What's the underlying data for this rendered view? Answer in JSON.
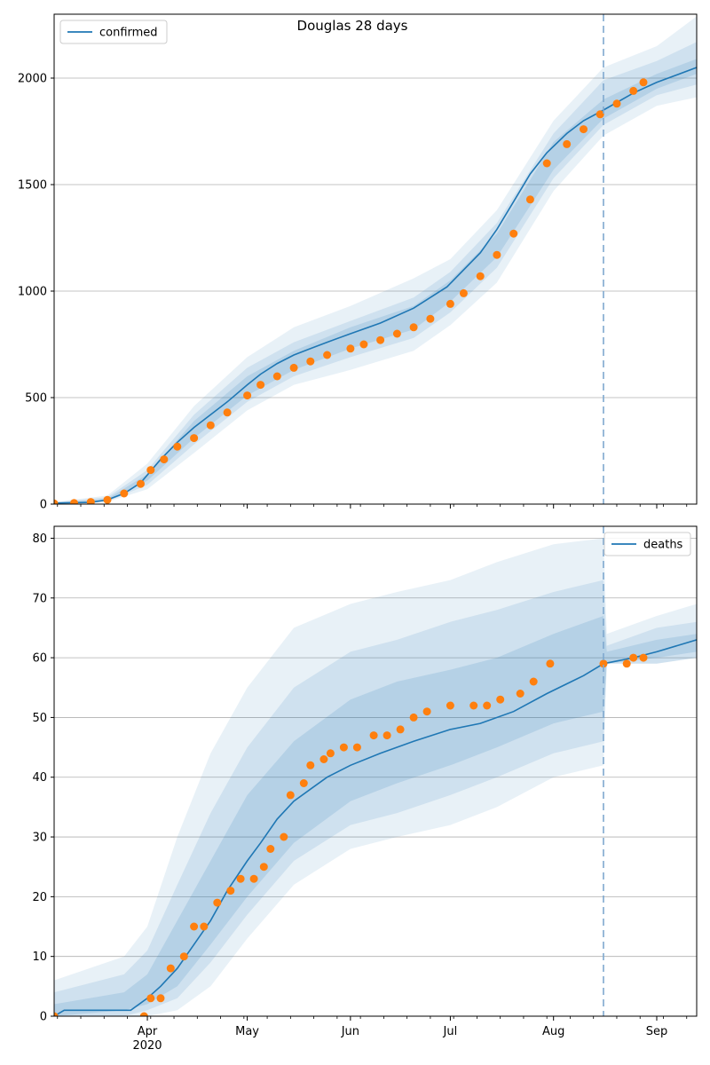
{
  "title": "Douglas 28 days",
  "colors": {
    "model": "#1f77b4",
    "observed": "#ff7f0e",
    "band": "#1f77b4",
    "grid": "#b0b0b0",
    "forecast_line": "#7fa9cf"
  },
  "x_axis": {
    "ticks": [
      {
        "date": "2020-04-01",
        "label": "Apr"
      },
      {
        "date": "2020-05-01",
        "label": "May"
      },
      {
        "date": "2020-06-01",
        "label": "Jun"
      },
      {
        "date": "2020-07-01",
        "label": "Jul"
      },
      {
        "date": "2020-08-01",
        "label": "Aug"
      },
      {
        "date": "2020-09-01",
        "label": "Sep"
      }
    ],
    "year_label": "2020",
    "range": [
      "2020-03-04",
      "2020-09-13"
    ],
    "forecast_start": "2020-08-16"
  },
  "chart_data": [
    {
      "type": "line",
      "legend": "confirmed",
      "legend_position": "upper-left",
      "ylim": [
        0,
        2300
      ],
      "yticks": [
        0,
        500,
        1000,
        1500,
        2000
      ],
      "grid": "horizontal",
      "model": {
        "x": [
          "2020-03-04",
          "2020-03-15",
          "2020-03-20",
          "2020-03-25",
          "2020-03-30",
          "2020-04-05",
          "2020-04-10",
          "2020-04-15",
          "2020-04-20",
          "2020-04-25",
          "2020-05-01",
          "2020-05-05",
          "2020-05-10",
          "2020-05-15",
          "2020-05-20",
          "2020-05-25",
          "2020-06-01",
          "2020-06-10",
          "2020-06-20",
          "2020-06-30",
          "2020-07-10",
          "2020-07-15",
          "2020-07-20",
          "2020-07-25",
          "2020-07-30",
          "2020-08-05",
          "2020-08-10",
          "2020-08-16",
          "2020-08-25",
          "2020-09-01",
          "2020-09-13"
        ],
        "y": [
          5,
          8,
          20,
          50,
          100,
          210,
          290,
          360,
          420,
          480,
          560,
          610,
          660,
          700,
          730,
          760,
          800,
          850,
          920,
          1020,
          1180,
          1290,
          1420,
          1550,
          1650,
          1740,
          1800,
          1850,
          1930,
          1980,
          2050
        ]
      },
      "bands": [
        {
          "level": "outer",
          "x": [
            "2020-03-04",
            "2020-03-20",
            "2020-04-01",
            "2020-04-15",
            "2020-05-01",
            "2020-05-15",
            "2020-06-01",
            "2020-06-20",
            "2020-07-01",
            "2020-07-15",
            "2020-08-01",
            "2020-08-16",
            "2020-09-01",
            "2020-09-13"
          ],
          "lower": [
            0,
            10,
            70,
            240,
            440,
            560,
            630,
            720,
            840,
            1040,
            1470,
            1730,
            1870,
            1910
          ],
          "upper": [
            10,
            40,
            190,
            460,
            690,
            830,
            930,
            1060,
            1150,
            1380,
            1800,
            2050,
            2150,
            2290
          ]
        },
        {
          "level": "middle",
          "x": [
            "2020-03-04",
            "2020-03-20",
            "2020-04-01",
            "2020-04-15",
            "2020-05-01",
            "2020-05-15",
            "2020-06-01",
            "2020-06-20",
            "2020-07-01",
            "2020-07-15",
            "2020-08-01",
            "2020-08-16",
            "2020-09-01",
            "2020-09-13"
          ],
          "lower": [
            0,
            12,
            90,
            280,
            480,
            600,
            690,
            780,
            900,
            1110,
            1530,
            1780,
            1920,
            1970
          ],
          "upper": [
            8,
            32,
            160,
            420,
            640,
            760,
            860,
            970,
            1090,
            1320,
            1740,
            1990,
            2080,
            2170
          ]
        },
        {
          "level": "inner",
          "x": [
            "2020-03-04",
            "2020-03-20",
            "2020-04-01",
            "2020-04-15",
            "2020-05-01",
            "2020-05-15",
            "2020-06-01",
            "2020-06-20",
            "2020-07-01",
            "2020-07-15",
            "2020-08-01",
            "2020-08-16",
            "2020-09-01",
            "2020-09-13"
          ],
          "lower": [
            2,
            15,
            110,
            310,
            510,
            630,
            730,
            820,
            950,
            1160,
            1570,
            1810,
            1950,
            2020
          ],
          "upper": [
            6,
            25,
            140,
            390,
            600,
            720,
            830,
            930,
            1050,
            1270,
            1700,
            1900,
            2020,
            2090
          ]
        }
      ],
      "observed": {
        "x": [
          "2020-03-04",
          "2020-03-10",
          "2020-03-15",
          "2020-03-20",
          "2020-03-25",
          "2020-03-30",
          "2020-04-02",
          "2020-04-06",
          "2020-04-10",
          "2020-04-15",
          "2020-04-20",
          "2020-04-25",
          "2020-05-01",
          "2020-05-05",
          "2020-05-10",
          "2020-05-15",
          "2020-05-20",
          "2020-05-25",
          "2020-06-01",
          "2020-06-05",
          "2020-06-10",
          "2020-06-15",
          "2020-06-20",
          "2020-06-25",
          "2020-07-01",
          "2020-07-05",
          "2020-07-10",
          "2020-07-15",
          "2020-07-20",
          "2020-07-25",
          "2020-07-30",
          "2020-08-05",
          "2020-08-10",
          "2020-08-15",
          "2020-08-20",
          "2020-08-25",
          "2020-08-28"
        ],
        "y": [
          3,
          5,
          10,
          20,
          50,
          95,
          160,
          210,
          270,
          310,
          370,
          430,
          510,
          560,
          600,
          640,
          670,
          700,
          730,
          750,
          770,
          800,
          830,
          870,
          940,
          990,
          1070,
          1170,
          1270,
          1430,
          1600,
          1690,
          1760,
          1830,
          1880,
          1940,
          1980
        ]
      }
    },
    {
      "type": "line",
      "legend": "deaths",
      "legend_position": "upper-right",
      "ylim": [
        0,
        82
      ],
      "yticks": [
        0,
        10,
        20,
        30,
        40,
        50,
        60,
        70,
        80
      ],
      "grid": "horizontal",
      "model": {
        "x": [
          "2020-03-04",
          "2020-03-07",
          "2020-03-27",
          "2020-04-01",
          "2020-04-05",
          "2020-04-10",
          "2020-04-15",
          "2020-04-20",
          "2020-04-25",
          "2020-05-01",
          "2020-05-05",
          "2020-05-10",
          "2020-05-15",
          "2020-05-20",
          "2020-05-25",
          "2020-06-01",
          "2020-06-10",
          "2020-06-20",
          "2020-07-01",
          "2020-07-10",
          "2020-07-20",
          "2020-07-30",
          "2020-08-10",
          "2020-08-16",
          "2020-08-25",
          "2020-09-01",
          "2020-09-13"
        ],
        "y": [
          0,
          1,
          1,
          3,
          5,
          8,
          12,
          16,
          21,
          26,
          29,
          33,
          36,
          38,
          40,
          42,
          44,
          46,
          48,
          49,
          51,
          54,
          57,
          59,
          60,
          61,
          63
        ]
      },
      "bands": [
        {
          "level": "outer",
          "x": [
            "2020-03-04",
            "2020-03-25",
            "2020-04-01",
            "2020-04-10",
            "2020-04-20",
            "2020-05-01",
            "2020-05-15",
            "2020-06-01",
            "2020-06-15",
            "2020-07-01",
            "2020-07-15",
            "2020-08-01",
            "2020-08-16",
            "2020-08-17",
            "2020-09-01",
            "2020-09-13"
          ],
          "lower": [
            0,
            0,
            0,
            1,
            5,
            13,
            22,
            28,
            30,
            32,
            35,
            40,
            42,
            59,
            59,
            60
          ],
          "upper": [
            6,
            10,
            15,
            30,
            44,
            55,
            65,
            69,
            71,
            73,
            76,
            79,
            80,
            64,
            67,
            69
          ]
        },
        {
          "level": "middle",
          "x": [
            "2020-03-04",
            "2020-03-25",
            "2020-04-01",
            "2020-04-10",
            "2020-04-20",
            "2020-05-01",
            "2020-05-15",
            "2020-06-01",
            "2020-06-15",
            "2020-07-01",
            "2020-07-15",
            "2020-08-01",
            "2020-08-16",
            "2020-08-17",
            "2020-09-01",
            "2020-09-13"
          ],
          "lower": [
            0,
            0,
            1,
            3,
            9,
            17,
            26,
            32,
            34,
            37,
            40,
            44,
            46,
            59,
            59,
            60
          ],
          "upper": [
            4,
            7,
            11,
            22,
            34,
            45,
            55,
            61,
            63,
            66,
            68,
            71,
            73,
            62,
            65,
            66
          ]
        },
        {
          "level": "inner",
          "x": [
            "2020-03-04",
            "2020-03-25",
            "2020-04-01",
            "2020-04-10",
            "2020-04-20",
            "2020-05-01",
            "2020-05-15",
            "2020-06-01",
            "2020-06-15",
            "2020-07-01",
            "2020-07-15",
            "2020-08-01",
            "2020-08-16",
            "2020-08-17",
            "2020-09-01",
            "2020-09-13"
          ],
          "lower": [
            0,
            1,
            2,
            5,
            12,
            20,
            29,
            36,
            39,
            42,
            45,
            49,
            51,
            59,
            60,
            61
          ],
          "upper": [
            2,
            4,
            7,
            16,
            26,
            37,
            46,
            53,
            56,
            58,
            60,
            64,
            67,
            61,
            63,
            64
          ]
        }
      ],
      "observed": {
        "x": [
          "2020-03-04",
          "2020-03-31",
          "2020-04-02",
          "2020-04-05",
          "2020-04-08",
          "2020-04-12",
          "2020-04-15",
          "2020-04-18",
          "2020-04-22",
          "2020-04-26",
          "2020-04-29",
          "2020-05-03",
          "2020-05-06",
          "2020-05-08",
          "2020-05-12",
          "2020-05-14",
          "2020-05-18",
          "2020-05-20",
          "2020-05-24",
          "2020-05-26",
          "2020-05-30",
          "2020-06-03",
          "2020-06-08",
          "2020-06-12",
          "2020-06-16",
          "2020-06-20",
          "2020-06-24",
          "2020-07-01",
          "2020-07-08",
          "2020-07-12",
          "2020-07-16",
          "2020-07-22",
          "2020-07-26",
          "2020-07-31",
          "2020-08-16",
          "2020-08-23",
          "2020-08-25",
          "2020-08-28"
        ],
        "y": [
          0,
          0,
          3,
          3,
          8,
          10,
          15,
          15,
          19,
          21,
          23,
          23,
          25,
          28,
          30,
          37,
          39,
          42,
          43,
          44,
          45,
          45,
          47,
          47,
          48,
          50,
          51,
          52,
          52,
          52,
          53,
          54,
          56,
          59,
          59,
          59,
          60,
          60
        ]
      }
    }
  ]
}
